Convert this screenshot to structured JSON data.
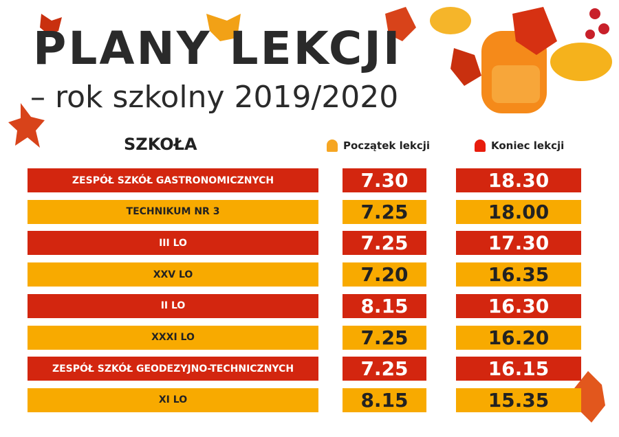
{
  "title": "PLANY LEKCJI",
  "subtitle": "– rok szkolny 2019/2020",
  "headers": {
    "school": "SZKOŁA",
    "start": "Początek lekcji",
    "end": "Koniec lekcji"
  },
  "colors": {
    "red": "#d3260f",
    "yellow": "#f8aa00",
    "start_bell": "#f6a623",
    "end_bell": "#e81c0c"
  },
  "rows": [
    {
      "school": "ZESPÓŁ SZKÓŁ GASTRONOMICZNYCH",
      "start": "7.30",
      "end": "18.30",
      "color": "red"
    },
    {
      "school": "TECHNIKUM NR 3",
      "start": "7.25",
      "end": "18.00",
      "color": "yellow"
    },
    {
      "school": "III LO",
      "start": "7.25",
      "end": "17.30",
      "color": "red"
    },
    {
      "school": "XXV LO",
      "start": "7.20",
      "end": "16.35",
      "color": "yellow"
    },
    {
      "school": "II LO",
      "start": "8.15",
      "end": "16.30",
      "color": "red"
    },
    {
      "school": "XXXI LO",
      "start": "7.25",
      "end": "16.20",
      "color": "yellow"
    },
    {
      "school": "ZESPÓŁ SZKÓŁ GEODEZYJNO-TECHNICZNYCH",
      "start": "7.25",
      "end": "16.15",
      "color": "red"
    },
    {
      "school": "XI LO",
      "start": "8.15",
      "end": "15.35",
      "color": "yellow"
    }
  ]
}
